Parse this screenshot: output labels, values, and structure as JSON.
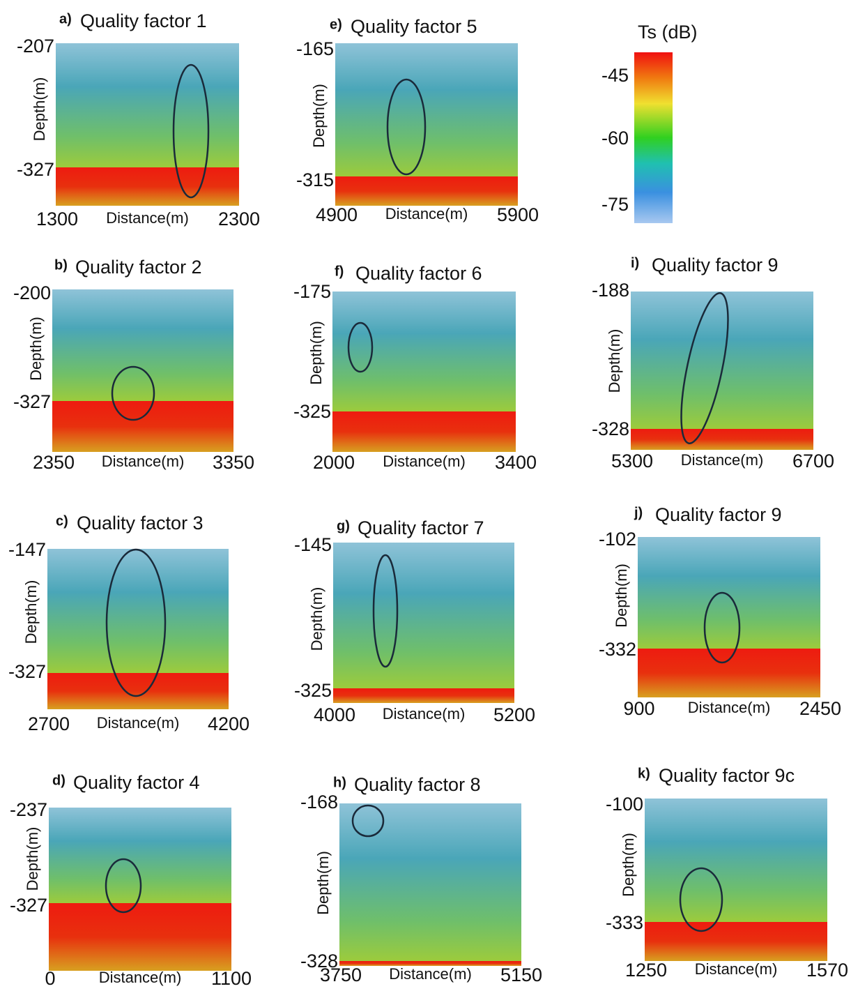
{
  "colorbar": {
    "title": "Ts (dB)",
    "ticks": [
      -45,
      -60,
      -75
    ]
  },
  "panels": [
    {
      "label": "a)",
      "title": "Quality factor 1",
      "y_label": "Depth(m)",
      "x_label": "Distance(m)",
      "y_range": [
        -207,
        -327
      ],
      "x_range": [
        1300,
        2300
      ]
    },
    {
      "label": "e)",
      "title": "Quality factor 5",
      "y_label": "Depth(m)",
      "x_label": "Distance(m)",
      "y_range": [
        -165,
        -315
      ],
      "x_range": [
        4900,
        5900
      ]
    },
    {
      "label": "b)",
      "title": "Quality factor 2",
      "y_label": "Depth(m)",
      "x_label": "Distance(m)",
      "y_range": [
        -200,
        -327
      ],
      "x_range": [
        2350,
        3350
      ]
    },
    {
      "label": "f)",
      "title": "Quality factor 6",
      "y_label": "Depth(m)",
      "x_label": "Distance(m)",
      "y_range": [
        -175,
        -325
      ],
      "x_range": [
        2000,
        3400
      ]
    },
    {
      "label": "i)",
      "title": "Quality factor 9",
      "y_label": "Depth(m)",
      "x_label": "Distance(m)",
      "y_range": [
        -188,
        -328
      ],
      "x_range": [
        5300,
        6700
      ]
    },
    {
      "label": "c)",
      "title": "Quality factor 3",
      "y_label": "Depth(m)",
      "x_label": "Distance(m)",
      "y_range": [
        -147,
        -327
      ],
      "x_range": [
        2700,
        4200
      ]
    },
    {
      "label": "g)",
      "title": "Quality factor 7",
      "y_label": "Depth(m)",
      "x_label": "Distance(m)",
      "y_range": [
        -145,
        -325
      ],
      "x_range": [
        4000,
        5200
      ]
    },
    {
      "label": "j)",
      "title": "Quality factor 9",
      "y_label": "Depth(m)",
      "x_label": "Distance(m)",
      "y_range": [
        -102,
        -332
      ],
      "x_range": [
        900,
        2450
      ]
    },
    {
      "label": "d)",
      "title": "Quality factor 4",
      "y_label": "Depth(m)",
      "x_label": "Distance(m)",
      "y_range": [
        -237,
        -327
      ],
      "x_range": [
        0,
        1100
      ]
    },
    {
      "label": "h)",
      "title": "Quality factor 8",
      "y_label": "Depth(m)",
      "x_label": "Distance(m)",
      "y_range": [
        -168,
        -328
      ],
      "x_range": [
        3750,
        5150
      ]
    },
    {
      "label": "k)",
      "title": "Quality factor 9c",
      "y_label": "Depth(m)",
      "x_label": "Distance(m)",
      "y_range": [
        -100,
        -333
      ],
      "x_range": [
        1250,
        1570
      ]
    }
  ]
}
